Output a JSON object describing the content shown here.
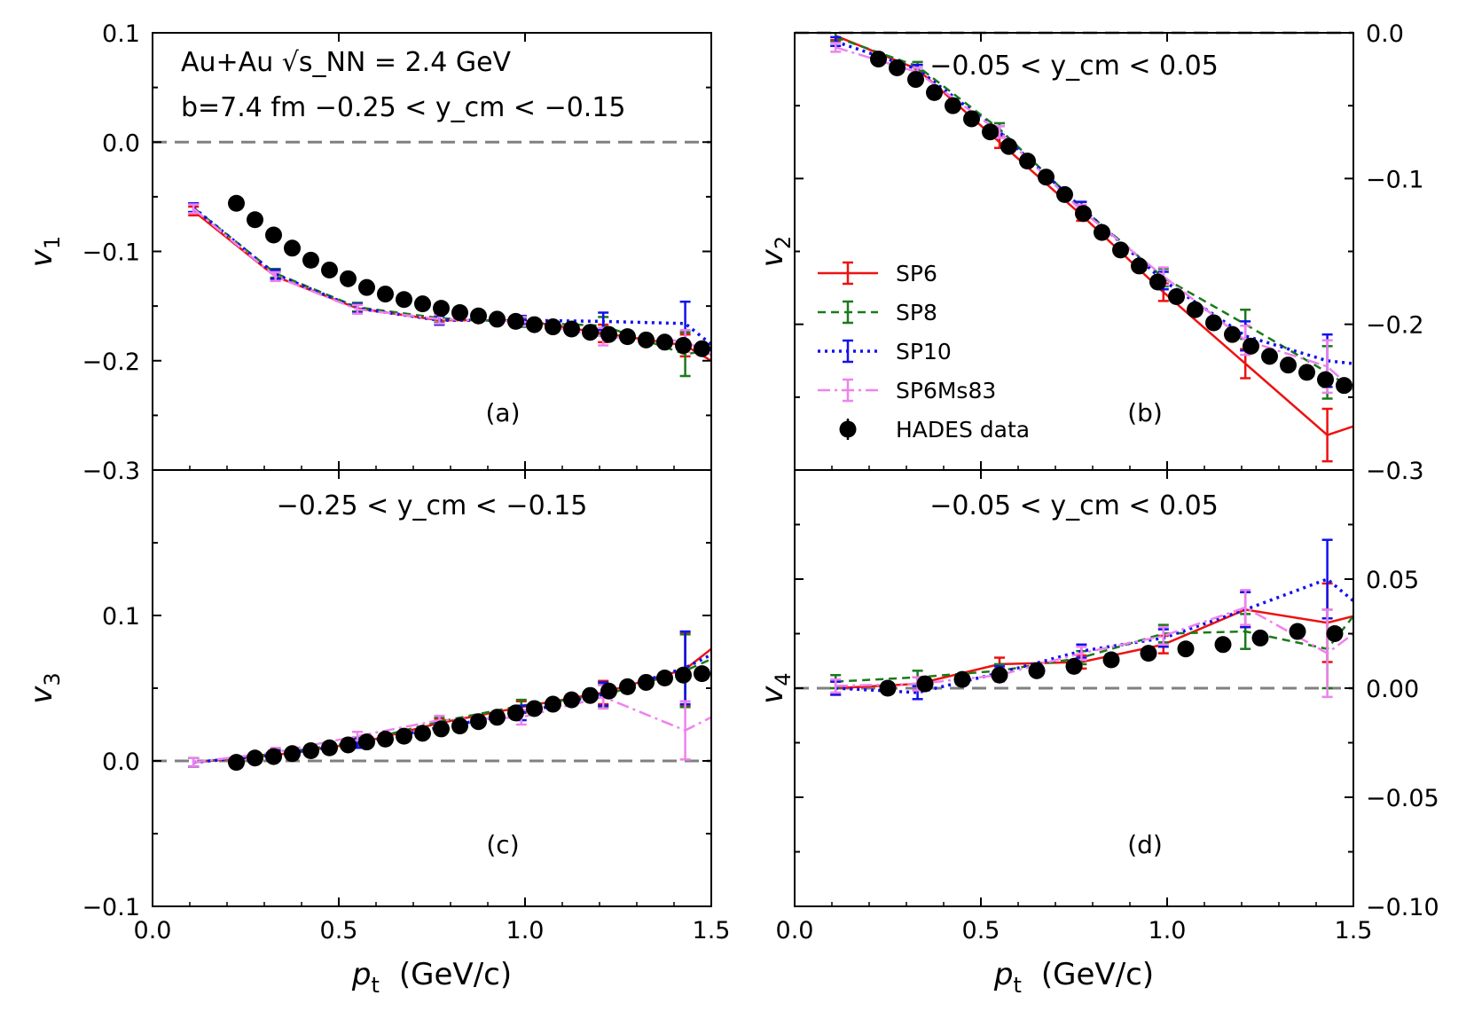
{
  "chart_data": [
    {
      "panel": "a",
      "type": "line",
      "panel_label": "(a)",
      "ylabel": "v",
      "ylabel_sub": "1",
      "xlabel": "",
      "ylim": [
        -0.3,
        0.1
      ],
      "xlim": [
        0.0,
        1.5
      ],
      "y_ticks": [
        0.1,
        0.0,
        -0.1,
        -0.2,
        -0.3
      ],
      "y_tick_labels": [
        "0.1",
        "0.0",
        "−0.1",
        "−0.2",
        "−0.3"
      ],
      "y_axis_side": "left",
      "annotation_lines": [
        "Au+Au √s_NN = 2.4 GeV",
        "b=7.4 fm  −0.25 < y_cm < −0.15"
      ],
      "series": [
        {
          "name": "SP6",
          "x": [
            0.11,
            0.33,
            0.55,
            0.77,
            0.99,
            1.21,
            1.43,
            1.5
          ],
          "y": [
            -0.063,
            -0.123,
            -0.152,
            -0.163,
            -0.163,
            -0.175,
            -0.186,
            -0.2
          ],
          "err": [
            0.004,
            0.004,
            0.004,
            0.004,
            0.004,
            0.008,
            0.01,
            0
          ]
        },
        {
          "name": "SP8",
          "x": [
            0.11,
            0.33,
            0.55,
            0.77,
            0.99,
            1.21,
            1.43,
            1.5
          ],
          "y": [
            -0.06,
            -0.12,
            -0.151,
            -0.161,
            -0.165,
            -0.168,
            -0.194,
            -0.19
          ],
          "err": [
            0.004,
            0.004,
            0.004,
            0.004,
            0.004,
            0.008,
            0.02,
            0
          ]
        },
        {
          "name": "SP10",
          "x": [
            0.11,
            0.33,
            0.55,
            0.77,
            0.99,
            1.21,
            1.43,
            1.5
          ],
          "y": [
            -0.06,
            -0.121,
            -0.152,
            -0.163,
            -0.163,
            -0.164,
            -0.166,
            -0.185
          ],
          "err": [
            0.004,
            0.004,
            0.004,
            0.004,
            0.004,
            0.008,
            0.02,
            0
          ]
        },
        {
          "name": "SP6Ms83",
          "x": [
            0.11,
            0.33,
            0.55,
            0.77,
            0.99,
            1.21,
            1.43,
            1.5
          ],
          "y": [
            -0.061,
            -0.123,
            -0.153,
            -0.162,
            -0.164,
            -0.178,
            -0.182,
            -0.195
          ],
          "err": [
            0.004,
            0.004,
            0.004,
            0.004,
            0.004,
            0.008,
            0.01,
            0
          ]
        },
        {
          "name": "HADES data",
          "x": [
            0.225,
            0.275,
            0.325,
            0.375,
            0.425,
            0.475,
            0.525,
            0.575,
            0.625,
            0.675,
            0.725,
            0.775,
            0.825,
            0.875,
            0.925,
            0.975,
            1.025,
            1.075,
            1.125,
            1.175,
            1.225,
            1.275,
            1.325,
            1.375,
            1.425,
            1.475
          ],
          "y": [
            -0.056,
            -0.071,
            -0.085,
            -0.097,
            -0.108,
            -0.117,
            -0.125,
            -0.133,
            -0.139,
            -0.144,
            -0.148,
            -0.152,
            -0.156,
            -0.159,
            -0.162,
            -0.164,
            -0.167,
            -0.169,
            -0.171,
            -0.174,
            -0.176,
            -0.178,
            -0.181,
            -0.183,
            -0.186,
            -0.189
          ]
        }
      ]
    },
    {
      "panel": "b",
      "type": "line",
      "panel_label": "(b)",
      "ylabel": "v",
      "ylabel_sub": "2",
      "xlabel": "",
      "ylim": [
        -0.3,
        0.0
      ],
      "xlim": [
        0.0,
        1.5
      ],
      "y_ticks": [
        0.0,
        -0.1,
        -0.2,
        -0.3
      ],
      "y_tick_labels": [
        "0.0",
        "−0.1",
        "−0.2",
        "−0.3"
      ],
      "y_axis_side": "right",
      "annotation_lines": [
        "−0.05 < y_cm < 0.05"
      ],
      "series": [
        {
          "name": "SP6",
          "x": [
            0.11,
            0.33,
            0.55,
            0.77,
            0.99,
            1.21,
            1.43,
            1.5
          ],
          "y": [
            -0.002,
            -0.025,
            -0.075,
            -0.125,
            -0.178,
            -0.227,
            -0.276,
            -0.27
          ],
          "err": [
            0.003,
            0.003,
            0.004,
            0.004,
            0.006,
            0.01,
            0.018,
            0
          ]
        },
        {
          "name": "SP8",
          "x": [
            0.11,
            0.33,
            0.55,
            0.77,
            0.99,
            1.21,
            1.43,
            1.5
          ],
          "y": [
            -0.003,
            -0.023,
            -0.066,
            -0.12,
            -0.168,
            -0.2,
            -0.233,
            -0.245
          ],
          "err": [
            0.003,
            0.003,
            0.004,
            0.004,
            0.006,
            0.01,
            0.018,
            0
          ]
        },
        {
          "name": "SP10",
          "x": [
            0.11,
            0.33,
            0.55,
            0.77,
            0.99,
            1.21,
            1.43,
            1.5
          ],
          "y": [
            -0.006,
            -0.025,
            -0.068,
            -0.12,
            -0.17,
            -0.208,
            -0.225,
            -0.227
          ],
          "err": [
            0.003,
            0.003,
            0.004,
            0.004,
            0.006,
            0.01,
            0.018,
            0
          ]
        },
        {
          "name": "SP6Ms83",
          "x": [
            0.11,
            0.33,
            0.55,
            0.77,
            0.99,
            1.21,
            1.43,
            1.5
          ],
          "y": [
            -0.01,
            -0.027,
            -0.068,
            -0.122,
            -0.167,
            -0.211,
            -0.229,
            -0.245
          ],
          "err": [
            0.003,
            0.003,
            0.004,
            0.004,
            0.006,
            0.01,
            0.018,
            0
          ]
        },
        {
          "name": "HADES data",
          "x": [
            0.225,
            0.275,
            0.325,
            0.375,
            0.425,
            0.475,
            0.525,
            0.575,
            0.625,
            0.675,
            0.725,
            0.775,
            0.825,
            0.875,
            0.925,
            0.975,
            1.025,
            1.075,
            1.125,
            1.175,
            1.225,
            1.275,
            1.325,
            1.375,
            1.425,
            1.475
          ],
          "y": [
            -0.018,
            -0.024,
            -0.032,
            -0.041,
            -0.05,
            -0.059,
            -0.068,
            -0.078,
            -0.088,
            -0.099,
            -0.111,
            -0.124,
            -0.137,
            -0.149,
            -0.16,
            -0.171,
            -0.181,
            -0.19,
            -0.199,
            -0.207,
            -0.215,
            -0.222,
            -0.228,
            -0.233,
            -0.238,
            -0.242
          ]
        }
      ]
    },
    {
      "panel": "c",
      "type": "line",
      "panel_label": "(c)",
      "ylabel": "v",
      "ylabel_sub": "3",
      "xlabel": "p",
      "xlabel_sub": "t",
      "xlabel_suffix": "(GeV/c)",
      "ylim": [
        -0.1,
        0.2
      ],
      "xlim": [
        0.0,
        1.5
      ],
      "x_ticks": [
        0.0,
        0.5,
        1.0,
        1.5
      ],
      "x_tick_labels": [
        "0.0",
        "0.5",
        "1.0",
        "1.5"
      ],
      "y_ticks": [
        0.1,
        0.0,
        -0.1
      ],
      "y_tick_labels": [
        "0.1",
        "0.0",
        "−0.1"
      ],
      "y_axis_side": "left",
      "annotation_lines": [
        "−0.25 < y_cm < −0.15"
      ],
      "series": [
        {
          "name": "SP6",
          "x": [
            0.11,
            0.33,
            0.55,
            0.77,
            0.99,
            1.21,
            1.43,
            1.5
          ],
          "y": [
            -0.001,
            0.004,
            0.012,
            0.026,
            0.037,
            0.047,
            0.063,
            0.077
          ],
          "err": [
            0.003,
            0.003,
            0.003,
            0.003,
            0.004,
            0.008,
            0.025,
            0
          ]
        },
        {
          "name": "SP8",
          "x": [
            0.11,
            0.33,
            0.55,
            0.77,
            0.99,
            1.21,
            1.43,
            1.5
          ],
          "y": [
            -0.001,
            0.005,
            0.013,
            0.027,
            0.038,
            0.045,
            0.062,
            0.07
          ],
          "err": [
            0.003,
            0.003,
            0.003,
            0.003,
            0.004,
            0.008,
            0.025,
            0
          ]
        },
        {
          "name": "SP10",
          "x": [
            0.11,
            0.33,
            0.55,
            0.77,
            0.99,
            1.21,
            1.43,
            1.5
          ],
          "y": [
            -0.001,
            0.004,
            0.012,
            0.023,
            0.033,
            0.046,
            0.064,
            0.073
          ],
          "err": [
            0.003,
            0.003,
            0.003,
            0.003,
            0.005,
            0.008,
            0.025,
            0
          ]
        },
        {
          "name": "SP6Ms83",
          "x": [
            0.11,
            0.33,
            0.55,
            0.77,
            0.99,
            1.21,
            1.43,
            1.5
          ],
          "y": [
            -0.001,
            0.006,
            0.017,
            0.028,
            0.03,
            0.044,
            0.021,
            0.03
          ],
          "err": [
            0.003,
            0.003,
            0.003,
            0.003,
            0.005,
            0.008,
            0.02,
            0
          ]
        },
        {
          "name": "HADES data",
          "x": [
            0.225,
            0.275,
            0.325,
            0.375,
            0.425,
            0.475,
            0.525,
            0.575,
            0.625,
            0.675,
            0.725,
            0.775,
            0.825,
            0.875,
            0.925,
            0.975,
            1.025,
            1.075,
            1.125,
            1.175,
            1.225,
            1.275,
            1.325,
            1.375,
            1.425,
            1.475
          ],
          "y": [
            -0.001,
            0.002,
            0.003,
            0.005,
            0.007,
            0.009,
            0.011,
            0.013,
            0.015,
            0.017,
            0.019,
            0.022,
            0.024,
            0.027,
            0.03,
            0.033,
            0.036,
            0.039,
            0.042,
            0.045,
            0.048,
            0.051,
            0.054,
            0.057,
            0.059,
            0.06
          ]
        }
      ]
    },
    {
      "panel": "d",
      "type": "line",
      "panel_label": "(d)",
      "ylabel": "v",
      "ylabel_sub": "4",
      "xlabel": "p",
      "xlabel_sub": "t",
      "xlabel_suffix": "(GeV/c)",
      "ylim": [
        -0.1,
        0.1
      ],
      "xlim": [
        0.0,
        1.5
      ],
      "x_ticks": [
        0.0,
        0.5,
        1.0,
        1.5
      ],
      "x_tick_labels": [
        "0.0",
        "0.5",
        "1.0",
        "1.5"
      ],
      "y_ticks": [
        0.05,
        0.0,
        -0.05,
        -0.1
      ],
      "y_tick_labels": [
        "0.05",
        "0.00",
        "−0.05",
        "−0.10"
      ],
      "y_axis_side": "right",
      "annotation_lines": [
        "−0.05 < y_cm < 0.05"
      ],
      "series": [
        {
          "name": "SP6",
          "x": [
            0.11,
            0.33,
            0.55,
            0.77,
            0.99,
            1.21,
            1.43,
            1.5
          ],
          "y": [
            0.0,
            0.002,
            0.011,
            0.012,
            0.02,
            0.036,
            0.03,
            0.033
          ],
          "err": [
            0.003,
            0.003,
            0.003,
            0.003,
            0.004,
            0.008,
            0.018,
            0
          ]
        },
        {
          "name": "SP8",
          "x": [
            0.11,
            0.33,
            0.55,
            0.77,
            0.99,
            1.21,
            1.43,
            1.5
          ],
          "y": [
            0.003,
            0.005,
            0.008,
            0.014,
            0.025,
            0.026,
            0.018,
            0.033
          ],
          "err": [
            0.003,
            0.003,
            0.003,
            0.003,
            0.004,
            0.008,
            0.018,
            0
          ]
        },
        {
          "name": "SP10",
          "x": [
            0.11,
            0.33,
            0.55,
            0.77,
            0.99,
            1.21,
            1.43,
            1.5
          ],
          "y": [
            0.0,
            -0.002,
            0.007,
            0.017,
            0.023,
            0.036,
            0.05,
            0.04
          ],
          "err": [
            0.003,
            0.003,
            0.003,
            0.003,
            0.004,
            0.008,
            0.018,
            0
          ]
        },
        {
          "name": "SP6Ms83",
          "x": [
            0.11,
            0.33,
            0.55,
            0.77,
            0.99,
            1.21,
            1.43,
            1.5
          ],
          "y": [
            0.001,
            0.002,
            0.006,
            0.016,
            0.024,
            0.037,
            0.016,
            0.025
          ],
          "err": [
            0.003,
            0.003,
            0.003,
            0.003,
            0.004,
            0.008,
            0.02,
            0
          ]
        },
        {
          "name": "HADES data",
          "x": [
            0.25,
            0.35,
            0.45,
            0.55,
            0.65,
            0.75,
            0.85,
            0.95,
            1.05,
            1.15,
            1.25,
            1.35,
            1.45
          ],
          "y": [
            0.0,
            0.002,
            0.004,
            0.006,
            0.008,
            0.01,
            0.013,
            0.016,
            0.018,
            0.02,
            0.023,
            0.026,
            0.025
          ]
        }
      ]
    }
  ],
  "legend": {
    "location": "panel b, center-left",
    "entries": [
      "SP6",
      "SP8",
      "SP10",
      "SP6Ms83",
      "HADES data"
    ]
  },
  "colors": {
    "SP6": "#ee1111",
    "SP8": "#1a7a1a",
    "SP10": "#1111ee",
    "SP6Ms83": "#ee82ee",
    "HADES data": "#000000",
    "zero_line": "#808080"
  }
}
